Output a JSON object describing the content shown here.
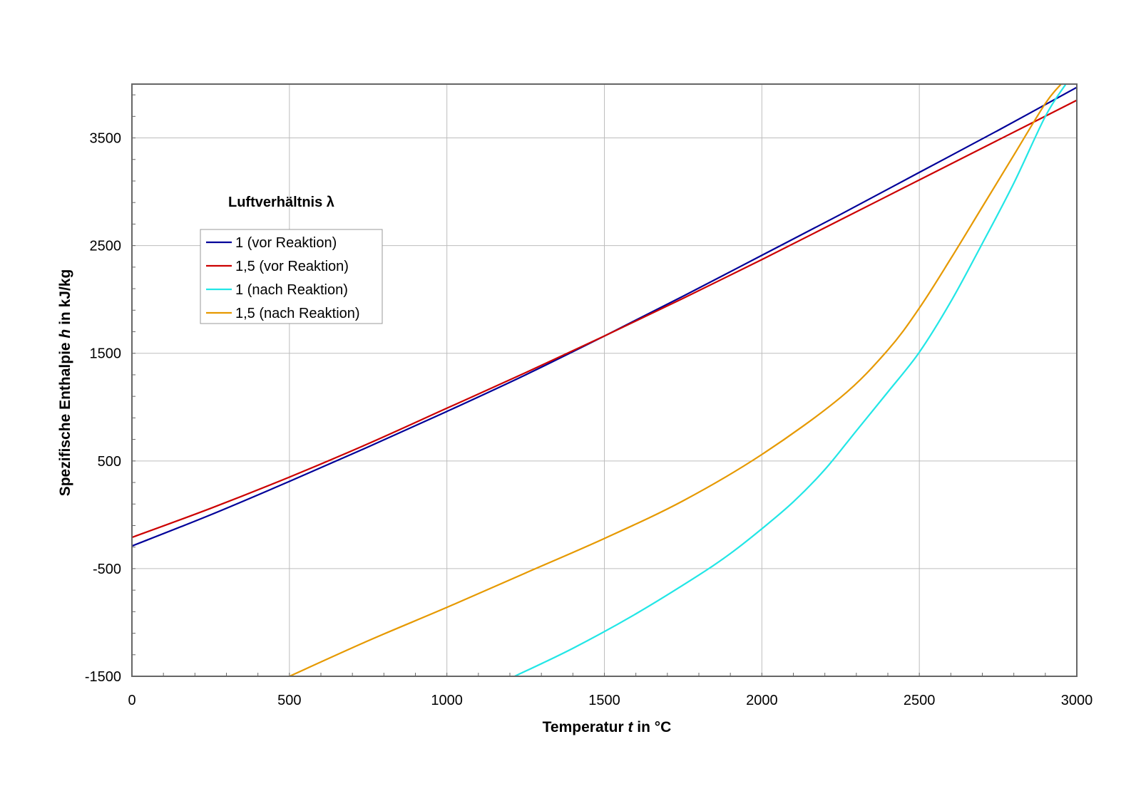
{
  "chart_data": {
    "type": "line",
    "xlabel": {
      "pre": "Temperatur ",
      "var": "t",
      "post": " in °C"
    },
    "ylabel": {
      "pre": "Spezifische Enthalpie ",
      "var": "h",
      "post": " in kJ/kg"
    },
    "xlim": [
      0,
      3000
    ],
    "ylim": [
      -1500,
      4000
    ],
    "xticks": [
      0,
      500,
      1000,
      1500,
      2000,
      2500,
      3000
    ],
    "yticks": [
      -1500,
      -500,
      500,
      1500,
      2500,
      3500
    ],
    "grid": true,
    "legend": {
      "title": "Luftverhältnis λ",
      "placement": "upper-left"
    },
    "series": [
      {
        "name": "1 (vor Reaktion)",
        "color": "#000099",
        "x": [
          0,
          250,
          500,
          750,
          1000,
          1250,
          1500,
          1750,
          2000,
          2250,
          2500,
          2750,
          3000
        ],
        "y": [
          -290,
          0,
          310,
          630,
          960,
          1300,
          1660,
          2030,
          2410,
          2790,
          3180,
          3570,
          3970
        ]
      },
      {
        "name": "1,5 (vor Reaktion)",
        "color": "#cc0000",
        "x": [
          0,
          250,
          500,
          750,
          1000,
          1250,
          1500,
          1750,
          2000,
          2250,
          2500,
          2750,
          3000
        ],
        "y": [
          -210,
          60,
          350,
          660,
          990,
          1320,
          1660,
          2010,
          2370,
          2740,
          3110,
          3480,
          3850
        ]
      },
      {
        "name": "1 (nach Reaktion)",
        "color": "#22e6e6",
        "x": [
          1215,
          1400,
          1600,
          1800,
          1900,
          2000,
          2100,
          2200,
          2300,
          2400,
          2500,
          2600,
          2700,
          2800,
          2900,
          2965
        ],
        "y": [
          -1500,
          -1240,
          -920,
          -560,
          -360,
          -130,
          120,
          420,
          780,
          1140,
          1510,
          1980,
          2520,
          3080,
          3700,
          4000
        ]
      },
      {
        "name": "1,5 (nach Reaktion)",
        "color": "#e69900",
        "x": [
          500,
          750,
          1000,
          1250,
          1500,
          1750,
          2000,
          2250,
          2400,
          2500,
          2600,
          2700,
          2800,
          2900,
          2950
        ],
        "y": [
          -1500,
          -1170,
          -860,
          -540,
          -220,
          130,
          560,
          1090,
          1530,
          1920,
          2380,
          2860,
          3340,
          3820,
          4000
        ]
      }
    ]
  }
}
